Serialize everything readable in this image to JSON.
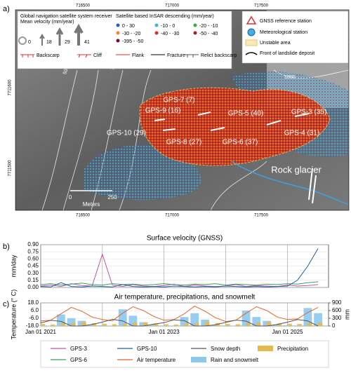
{
  "map": {
    "panel_label": "a)",
    "coordinates_top": [
      "716500",
      "717000",
      "717500"
    ],
    "coordinates_bottom": [
      "716500",
      "717000",
      "717500"
    ],
    "coordinates_left": [
      "7711600",
      "7711500"
    ],
    "legend": {
      "gnss_title": "Global navigation satellite system receiver",
      "gnss_subtitle": "Mean velocity (mm/year)",
      "gnss_sizes": [
        "0",
        "18",
        "29",
        "41"
      ],
      "insar_title": "Satellite based InSAR descending (mm/year)",
      "insar_classes": [
        {
          "label": "0 - 30",
          "color": "#2f5fb0"
        },
        {
          "label": "-10 - 0",
          "color": "#3fb2e0"
        },
        {
          "label": "-20 - -10",
          "color": "#3ea84a"
        },
        {
          "label": "-30 - -20",
          "color": "#f08a24"
        },
        {
          "label": "-40 - -30",
          "color": "#e02a20"
        },
        {
          "label": "-50 - -40",
          "color": "#b0182a"
        },
        {
          "label": "-395 - -50",
          "color": "#6e1020"
        }
      ],
      "lines": [
        "Backscarp",
        "Cliff",
        "Flank",
        "Fracture",
        "Relict backscarp"
      ],
      "right": [
        "GNSS reference station",
        "Meteorological station",
        "Unstable area",
        "Front of landslide deposit"
      ]
    },
    "stations": [
      "GPS-7 (7)",
      "GPS-5 (40)",
      "GPS-3 (35)",
      "GPS-9 (16)",
      "GPS-10 (29)",
      "GPS-8 (27)",
      "GPS-6 (37)",
      "GPS-4 (31)"
    ],
    "rock_glacier": "Rock glacier",
    "contour_labels": [
      "500",
      "700",
      "1000"
    ],
    "scale": {
      "start": "0",
      "end": "250",
      "unit": "Meters"
    }
  },
  "chart_data": [
    {
      "type": "line",
      "panel_label": "b)",
      "title": "Surface velocity (GNSS)",
      "y_label": "mm/day",
      "x": [
        "2021-01-01",
        "2021-03-01",
        "2021-05-01",
        "2021-07-01",
        "2021-09-01",
        "2021-11-01",
        "2022-01-01",
        "2022-03-01",
        "2022-05-01",
        "2022-07-01",
        "2022-09-01",
        "2022-11-01",
        "2023-01-01",
        "2023-03-01",
        "2023-05-01",
        "2023-07-01",
        "2023-09-01",
        "2023-11-01",
        "2024-01-01",
        "2024-03-01",
        "2024-05-01",
        "2024-07-01",
        "2024-09-01",
        "2024-11-01",
        "2025-01-01",
        "2025-03-01",
        "2025-05-01",
        "2025-07-01"
      ],
      "xlim": [
        "2021-01-01",
        "2025-09-01"
      ],
      "xticks": [
        {
          "value": "2021-01-01",
          "label": null
        },
        {
          "value": "2022-01-01",
          "label": null
        },
        {
          "value": "2023-01-01",
          "label": null
        },
        {
          "value": "2024-01-01",
          "label": null
        },
        {
          "value": "2025-01-01",
          "label": null
        }
      ],
      "ylim": [
        0,
        0.9
      ],
      "yticks": [
        {
          "value": 0,
          "label": "0.00"
        },
        {
          "value": 0.15,
          "label": "0.15"
        },
        {
          "value": 0.3,
          "label": "0.30"
        },
        {
          "value": 0.45,
          "label": "0.45"
        },
        {
          "value": 0.6,
          "label": "0.60"
        },
        {
          "value": 0.75,
          "label": "0.75"
        },
        {
          "value": 0.9,
          "label": "0.90"
        }
      ],
      "grid": true,
      "series": [
        {
          "name": "GPS-3",
          "color": "#c653a6",
          "values": [
            0.03,
            0.05,
            0.02,
            0.08,
            0.04,
            0.03,
            0.7,
            0.05,
            0.02,
            0.06,
            0.03,
            0.02,
            0.04,
            0.07,
            0.02,
            0.05,
            0.03,
            0.02,
            0.03,
            0.06,
            0.02,
            0.04,
            0.03,
            0.02,
            0.05,
            0.03,
            0.04,
            0.06
          ]
        },
        {
          "name": "GPS-6",
          "color": "#3a9e5e",
          "values": [
            0.06,
            0.08,
            0.05,
            0.07,
            0.09,
            0.06,
            0.05,
            0.08,
            0.06,
            0.07,
            0.05,
            0.06,
            0.08,
            0.06,
            0.05,
            0.07,
            0.06,
            0.08,
            0.05,
            0.07,
            0.06,
            0.05,
            0.07,
            0.06,
            0.08,
            0.07,
            0.1,
            0.12
          ]
        },
        {
          "name": "GPS-10",
          "color": "#1f5f9e",
          "values": [
            0.02,
            0.01,
            0.1,
            0.02,
            0.01,
            0.03,
            0.02,
            0.01,
            0.06,
            0.02,
            0.01,
            0.02,
            0.01,
            0.03,
            0.02,
            0.01,
            0.02,
            0.01,
            0.03,
            0.02,
            0.01,
            0.02,
            0.01,
            0.02,
            0.03,
            0.15,
            0.45,
            0.82
          ]
        }
      ]
    },
    {
      "type": "combo",
      "panel_label": "c)",
      "title": "Air temperature, precipitations, and snowmelt",
      "y_label": "Temperature (° C)",
      "y2_label": "mm",
      "x": [
        "2021-01-01",
        "2021-03-01",
        "2021-05-01",
        "2021-07-01",
        "2021-09-01",
        "2021-11-01",
        "2022-01-01",
        "2022-03-01",
        "2022-05-01",
        "2022-07-01",
        "2022-09-01",
        "2022-11-01",
        "2023-01-01",
        "2023-03-01",
        "2023-05-01",
        "2023-07-01",
        "2023-09-01",
        "2023-11-01",
        "2024-01-01",
        "2024-03-01",
        "2024-05-01",
        "2024-07-01",
        "2024-09-01",
        "2024-11-01",
        "2025-01-01",
        "2025-03-01",
        "2025-05-01",
        "2025-07-01"
      ],
      "xlim": [
        "2021-01-01",
        "2025-09-01"
      ],
      "xticks": [
        {
          "value": "2021-01-01",
          "label": "Jan 01 2021"
        },
        {
          "value": "2022-01-01",
          "label": null
        },
        {
          "value": "2023-01-01",
          "label": "Jan 01 2023"
        },
        {
          "value": "2024-01-01",
          "label": null
        },
        {
          "value": "2025-01-01",
          "label": "Jan 01 2025"
        }
      ],
      "ylim": [
        -18,
        18
      ],
      "yticks": [
        {
          "value": -18,
          "label": "-18.0"
        },
        {
          "value": -6,
          "label": "-6.0"
        },
        {
          "value": 6,
          "label": "6.0"
        },
        {
          "value": 18,
          "label": "18.0"
        }
      ],
      "y2lim": [
        0,
        900
      ],
      "y2ticks": [
        0,
        300,
        600,
        900
      ],
      "grid": true,
      "series": [
        {
          "name": "Air temperature",
          "type": "line",
          "color": "#e0662a",
          "values": [
            -10,
            -9,
            1,
            11,
            5,
            -4,
            -8,
            -10,
            2,
            12,
            6,
            -3,
            -9,
            -8,
            1,
            13,
            5,
            -5,
            -11,
            -9,
            2,
            12,
            6,
            -4,
            -8,
            -7,
            3,
            11
          ]
        },
        {
          "name": "Snow depth",
          "type": "line",
          "axis": "y2",
          "color": "#555555",
          "values": [
            120,
            220,
            180,
            0,
            0,
            60,
            150,
            260,
            200,
            0,
            0,
            70,
            130,
            240,
            210,
            0,
            0,
            50,
            140,
            230,
            190,
            0,
            0,
            60,
            150,
            250,
            200,
            0
          ]
        },
        {
          "name": "Rain and snowmelt",
          "type": "bar",
          "axis": "y2",
          "color": "#8cc8ee",
          "values": [
            20,
            10,
            450,
            300,
            200,
            40,
            30,
            10,
            650,
            400,
            150,
            50,
            20,
            15,
            350,
            500,
            250,
            40,
            20,
            10,
            600,
            350,
            200,
            60,
            30,
            20,
            700,
            500
          ]
        },
        {
          "name": "Precipitation",
          "type": "bar",
          "axis": "y2",
          "color": "#e8b84a",
          "values": [
            80,
            60,
            100,
            120,
            150,
            110,
            90,
            70,
            80,
            130,
            140,
            100,
            70,
            60,
            90,
            110,
            160,
            120,
            80,
            70,
            100,
            130,
            150,
            100,
            90,
            80,
            110,
            130
          ]
        }
      ]
    }
  ]
}
